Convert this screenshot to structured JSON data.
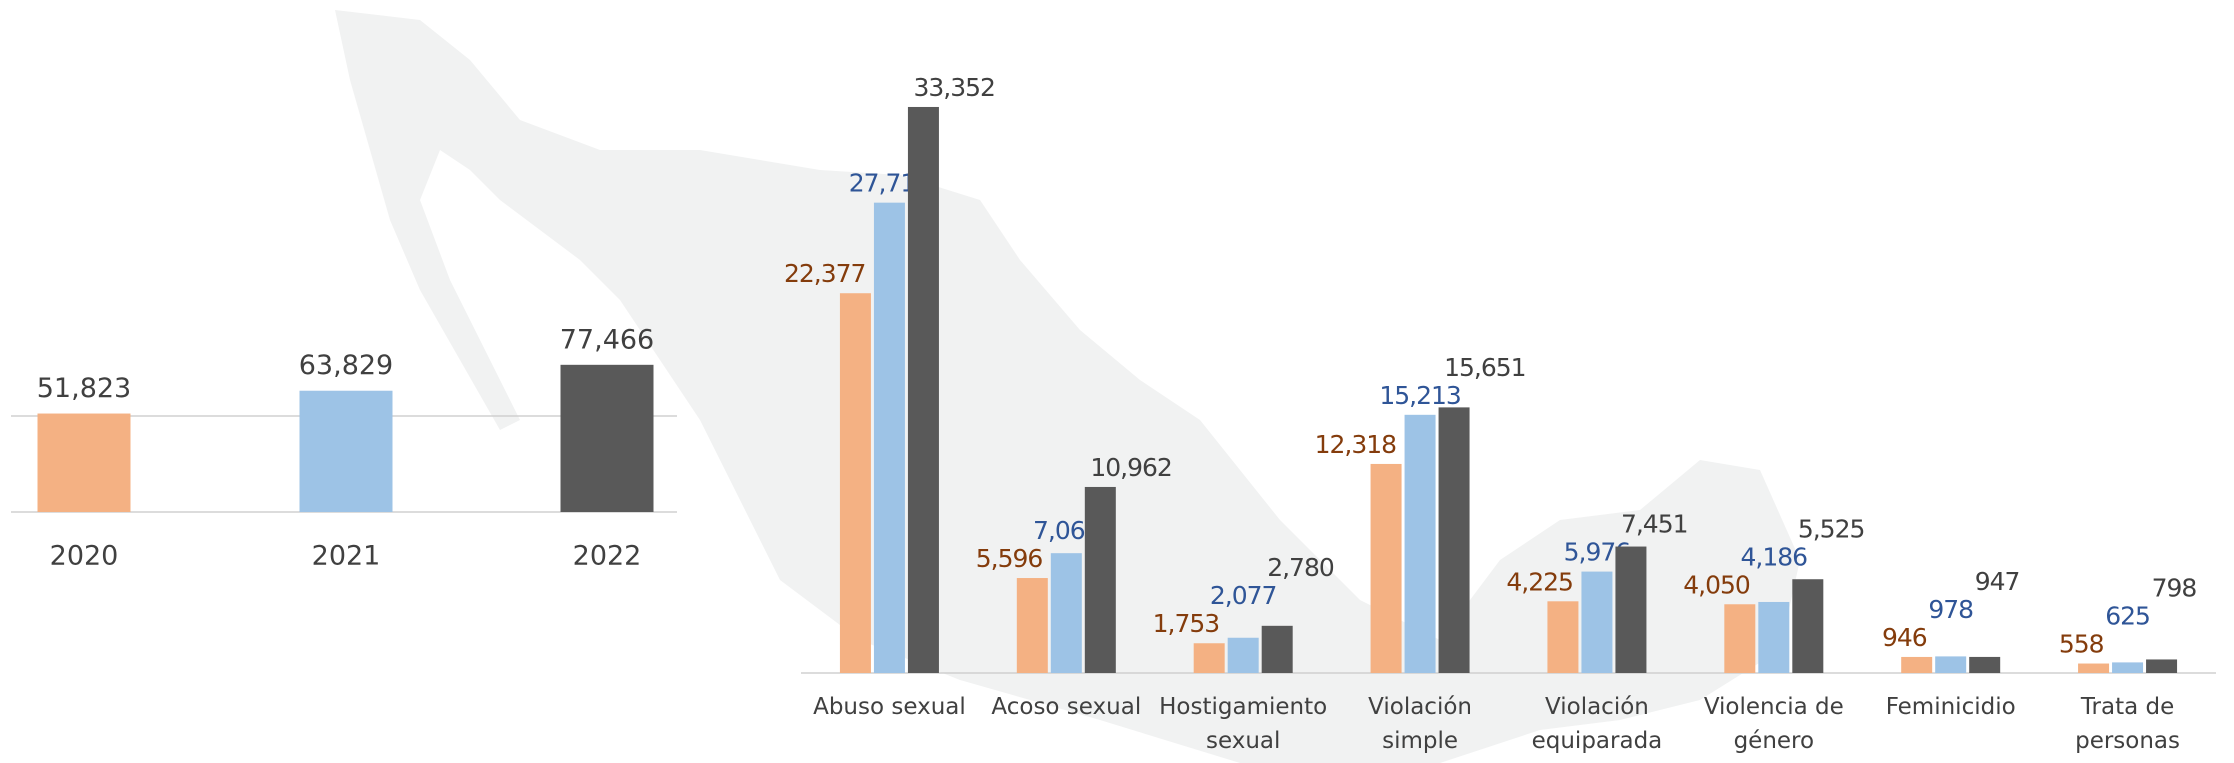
{
  "chart_data": [
    {
      "type": "bar",
      "categories": [
        "2020",
        "2021",
        "2022"
      ],
      "values": [
        51823,
        63829,
        77466
      ],
      "value_labels": [
        "51,823",
        "63,829",
        "77,466"
      ],
      "colors": [
        "#f4b183",
        "#9dc3e6",
        "#595959"
      ],
      "ylim": [
        0,
        100000
      ]
    },
    {
      "type": "grouped_bar",
      "categories": [
        "Abuso sexual",
        "Acoso sexual",
        "Hostigamiento sexual",
        "Violación simple",
        "Violación equiparada",
        "Violencia de género",
        "Feminicidio",
        "Trata de personas"
      ],
      "series": [
        {
          "color": "#f4b183",
          "label_color": "#843c0c",
          "values": [
            22377,
            5596,
            1753,
            12318,
            4225,
            4050,
            946,
            558
          ],
          "value_labels": [
            "22,377",
            "5,596",
            "1,753",
            "12,318",
            "4,225",
            "4,050",
            "946",
            "558"
          ]
        },
        {
          "color": "#9dc3e6",
          "label_color": "#2f5597",
          "values": [
            27714,
            7060,
            2077,
            15213,
            5976,
            4186,
            978,
            625
          ],
          "value_labels": [
            "27,714",
            "7,060",
            "2,077",
            "15,213",
            "5,976",
            "4,186",
            "978",
            "625"
          ]
        },
        {
          "color": "#595959",
          "label_color": "#404040",
          "values": [
            33352,
            10962,
            2780,
            15651,
            7451,
            5525,
            947,
            798
          ],
          "value_labels": [
            "33,352",
            "10,962",
            "2,780",
            "15,651",
            "7,451",
            "5,525",
            "947",
            "798"
          ]
        }
      ],
      "ylim": [
        0,
        35000
      ]
    }
  ]
}
